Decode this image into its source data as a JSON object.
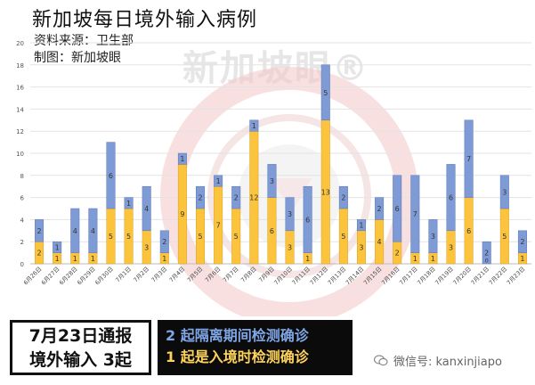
{
  "header": {
    "title": "新加坡每日境外输入病例",
    "source": "资料来源：卫生部",
    "maker": "制图：新加坡眼"
  },
  "watermark": {
    "text": "新加坡眼®"
  },
  "footer": {
    "headline_line1": "7月23日通报",
    "headline_line2": "境外输入 3起",
    "note_blue": "2 起隔离期间检测确诊",
    "note_yellow": "1 起是入境时检测确诊",
    "wechat": "微信号: kanxinjiapo"
  },
  "colors": {
    "yellow": "#fcc33d",
    "blue": "#7f9bd6",
    "yellow_border": "#d8a025",
    "blue_border": "#5a74b8",
    "label_text": "#333333"
  },
  "chart_data": {
    "type": "bar",
    "stacked": true,
    "categories": [
      "6月26日",
      "6月27日",
      "6月28日",
      "6月29日",
      "6月30日",
      "7月1日",
      "7月2日",
      "7月3日",
      "7月4日",
      "7月5日",
      "7月6日",
      "7月7日",
      "7月8日",
      "7月9日",
      "7月10日",
      "7月11日",
      "7月12日",
      "7月13日",
      "7月14日",
      "7月15日",
      "7月16日",
      "7月17日",
      "7月18日",
      "7月19日",
      "7月20日",
      "7月21日",
      "7月22日",
      "7月23日"
    ],
    "series": [
      {
        "values": [
          2,
          1,
          1,
          1,
          5,
          5,
          3,
          1,
          9,
          5,
          7,
          5,
          12,
          6,
          3,
          1,
          13,
          5,
          3,
          4,
          2,
          1,
          1,
          3,
          6,
          0,
          5,
          1
        ]
      },
      {
        "values": [
          2,
          1,
          4,
          4,
          6,
          1,
          4,
          2,
          1,
          2,
          1,
          2,
          1,
          3,
          3,
          6,
          5,
          2,
          1,
          2,
          6,
          7,
          3,
          6,
          7,
          2,
          3,
          2
        ]
      }
    ],
    "data_labels": {
      "series_0": [
        "2",
        "1",
        "1",
        "1",
        "5",
        "5",
        "3",
        "1",
        "9",
        "5",
        "7",
        "5",
        "12",
        "6",
        "3",
        "1",
        "13",
        "5",
        "3",
        "4",
        "2",
        "1",
        "1",
        "3",
        "6",
        "0",
        "5",
        "1"
      ],
      "series_1": [
        "2",
        "1",
        "4",
        "4",
        "6",
        "1",
        "4",
        "2",
        "1",
        "2",
        "1",
        "2",
        "1",
        "3",
        "3",
        "6",
        "5",
        "2",
        "1",
        "2",
        "6",
        "7",
        "3",
        "6",
        "7",
        "2",
        "3",
        "2"
      ]
    },
    "yticks": [
      "0",
      "2",
      "4",
      "6",
      "8",
      "10",
      "12",
      "14",
      "16",
      "18",
      "20"
    ],
    "ylim": [
      0,
      20
    ],
    "grid": true
  }
}
